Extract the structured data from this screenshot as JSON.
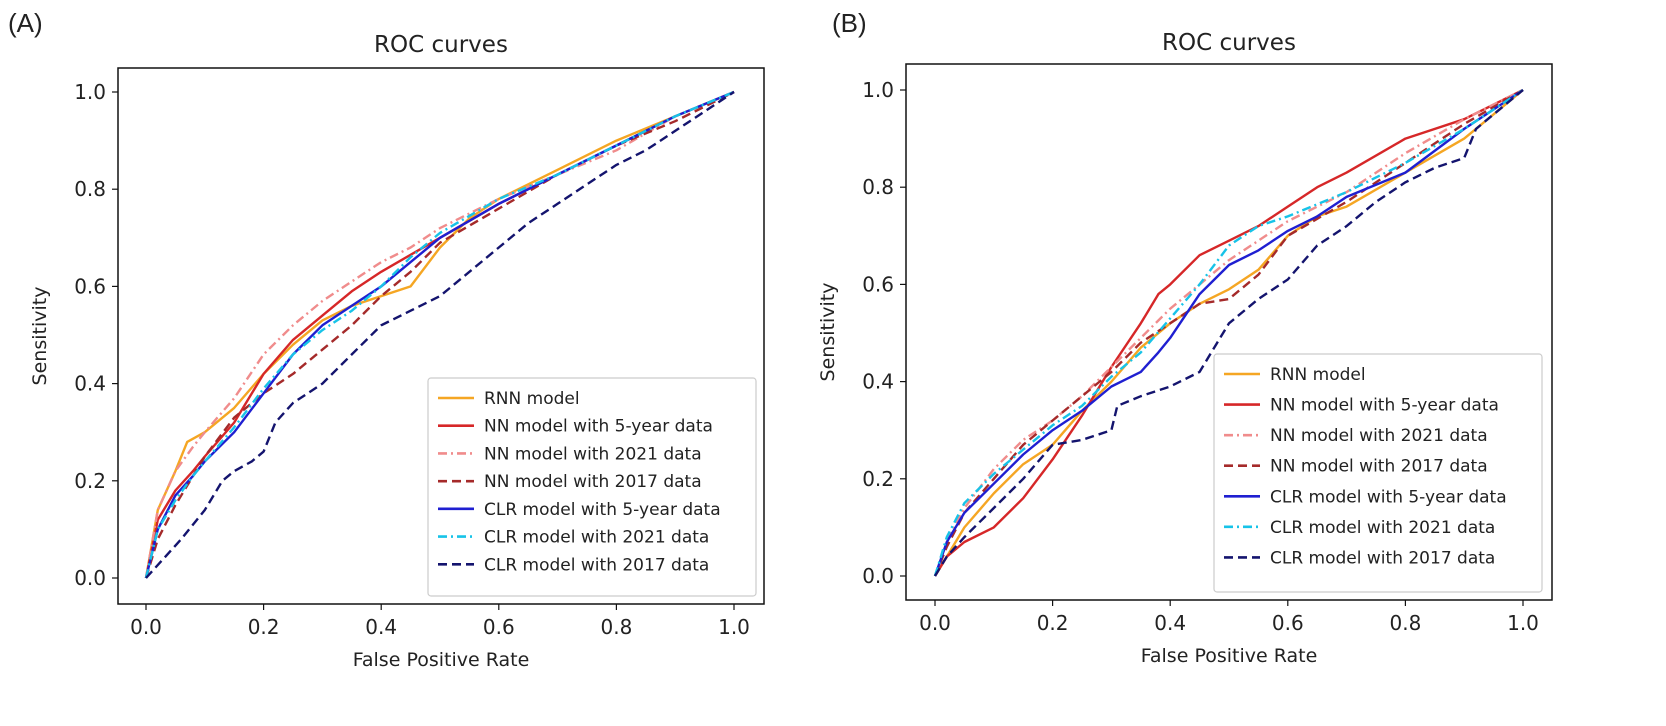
{
  "chart_data": [
    {
      "type": "line",
      "panel": "(A)",
      "title": "ROC curves",
      "xlabel": "False Positive Rate",
      "ylabel": "Sensitivity",
      "xlim": [
        0.0,
        1.0
      ],
      "ylim": [
        0.0,
        1.0
      ],
      "xticks": [
        "0.0",
        "0.2",
        "0.4",
        "0.6",
        "0.8",
        "1.0"
      ],
      "yticks": [
        "0.0",
        "0.2",
        "0.4",
        "0.6",
        "0.8",
        "1.0"
      ],
      "legend_position": "bottom-right",
      "series": [
        {
          "name": "RNN model",
          "color": "#f5a623",
          "dash": "solid",
          "x": [
            0,
            0.02,
            0.05,
            0.07,
            0.1,
            0.15,
            0.2,
            0.25,
            0.3,
            0.35,
            0.4,
            0.45,
            0.5,
            0.55,
            0.6,
            0.7,
            0.8,
            0.9,
            1.0
          ],
          "y": [
            0,
            0.14,
            0.22,
            0.28,
            0.3,
            0.35,
            0.42,
            0.48,
            0.53,
            0.56,
            0.58,
            0.6,
            0.68,
            0.74,
            0.78,
            0.84,
            0.9,
            0.95,
            1.0
          ]
        },
        {
          "name": "NN model with 5-year data",
          "color": "#d62728",
          "dash": "solid",
          "x": [
            0,
            0.02,
            0.05,
            0.08,
            0.1,
            0.15,
            0.2,
            0.25,
            0.3,
            0.35,
            0.4,
            0.5,
            0.6,
            0.7,
            0.8,
            0.9,
            1.0
          ],
          "y": [
            0,
            0.12,
            0.18,
            0.22,
            0.25,
            0.32,
            0.42,
            0.49,
            0.54,
            0.59,
            0.63,
            0.7,
            0.77,
            0.83,
            0.89,
            0.95,
            1.0
          ]
        },
        {
          "name": "NN model with 2021 data",
          "color": "#f08c8c",
          "dash": "dashdot",
          "x": [
            0,
            0.02,
            0.05,
            0.08,
            0.1,
            0.15,
            0.2,
            0.25,
            0.3,
            0.35,
            0.4,
            0.45,
            0.5,
            0.6,
            0.7,
            0.8,
            0.9,
            1.0
          ],
          "y": [
            0,
            0.14,
            0.22,
            0.27,
            0.3,
            0.37,
            0.46,
            0.52,
            0.57,
            0.61,
            0.65,
            0.68,
            0.72,
            0.78,
            0.83,
            0.88,
            0.95,
            1.0
          ]
        },
        {
          "name": "NN model with 2017 data",
          "color": "#a52a2a",
          "dash": "dashed",
          "x": [
            0,
            0.02,
            0.05,
            0.1,
            0.15,
            0.2,
            0.25,
            0.3,
            0.35,
            0.4,
            0.45,
            0.5,
            0.6,
            0.7,
            0.8,
            0.9,
            1.0
          ],
          "y": [
            0,
            0.08,
            0.15,
            0.25,
            0.33,
            0.38,
            0.42,
            0.47,
            0.52,
            0.58,
            0.63,
            0.69,
            0.76,
            0.83,
            0.89,
            0.94,
            1.0
          ]
        },
        {
          "name": "CLR model with 5-year data",
          "color": "#1f1fd1",
          "dash": "solid",
          "x": [
            0,
            0.02,
            0.05,
            0.08,
            0.1,
            0.15,
            0.2,
            0.25,
            0.3,
            0.35,
            0.4,
            0.45,
            0.5,
            0.6,
            0.7,
            0.8,
            0.9,
            1.0
          ],
          "y": [
            0,
            0.1,
            0.17,
            0.21,
            0.24,
            0.3,
            0.38,
            0.46,
            0.52,
            0.56,
            0.6,
            0.65,
            0.7,
            0.77,
            0.83,
            0.89,
            0.95,
            1.0
          ]
        },
        {
          "name": "CLR model with 2021 data",
          "color": "#17c3e8",
          "dash": "dashdot",
          "x": [
            0,
            0.02,
            0.05,
            0.08,
            0.1,
            0.15,
            0.2,
            0.25,
            0.3,
            0.35,
            0.4,
            0.45,
            0.5,
            0.6,
            0.7,
            0.8,
            0.9,
            1.0
          ],
          "y": [
            0,
            0.1,
            0.16,
            0.21,
            0.24,
            0.31,
            0.39,
            0.46,
            0.51,
            0.55,
            0.6,
            0.66,
            0.71,
            0.78,
            0.83,
            0.89,
            0.95,
            1.0
          ]
        },
        {
          "name": "CLR model with 2017 data",
          "color": "#14146e",
          "dash": "dashed",
          "x": [
            0,
            0.03,
            0.06,
            0.1,
            0.13,
            0.15,
            0.18,
            0.2,
            0.22,
            0.25,
            0.3,
            0.35,
            0.4,
            0.45,
            0.5,
            0.55,
            0.6,
            0.65,
            0.7,
            0.75,
            0.8,
            0.85,
            0.9,
            1.0
          ],
          "y": [
            0,
            0.04,
            0.08,
            0.14,
            0.2,
            0.22,
            0.24,
            0.26,
            0.32,
            0.36,
            0.4,
            0.46,
            0.52,
            0.55,
            0.58,
            0.63,
            0.68,
            0.73,
            0.77,
            0.81,
            0.85,
            0.88,
            0.92,
            1.0
          ]
        }
      ]
    },
    {
      "type": "line",
      "panel": "(B)",
      "title": "ROC curves",
      "xlabel": "False Positive Rate",
      "ylabel": "Sensitivity",
      "xlim": [
        0.0,
        1.0
      ],
      "ylim": [
        0.0,
        1.0
      ],
      "xticks": [
        "0.0",
        "0.2",
        "0.4",
        "0.6",
        "0.8",
        "1.0"
      ],
      "yticks": [
        "0.0",
        "0.2",
        "0.4",
        "0.6",
        "0.8",
        "1.0"
      ],
      "legend_position": "bottom-right",
      "series": [
        {
          "name": "RNN model",
          "color": "#f5a623",
          "dash": "solid",
          "x": [
            0,
            0.02,
            0.05,
            0.1,
            0.15,
            0.2,
            0.25,
            0.3,
            0.35,
            0.4,
            0.45,
            0.5,
            0.55,
            0.6,
            0.65,
            0.7,
            0.8,
            0.9,
            1.0
          ],
          "y": [
            0,
            0.04,
            0.1,
            0.17,
            0.23,
            0.27,
            0.34,
            0.4,
            0.47,
            0.52,
            0.56,
            0.59,
            0.63,
            0.7,
            0.74,
            0.76,
            0.83,
            0.9,
            1.0
          ]
        },
        {
          "name": "NN model with 5-year data",
          "color": "#d62728",
          "dash": "solid",
          "x": [
            0,
            0.02,
            0.05,
            0.1,
            0.15,
            0.2,
            0.25,
            0.3,
            0.35,
            0.38,
            0.4,
            0.45,
            0.5,
            0.55,
            0.6,
            0.65,
            0.7,
            0.8,
            0.9,
            1.0
          ],
          "y": [
            0,
            0.04,
            0.07,
            0.1,
            0.16,
            0.24,
            0.33,
            0.43,
            0.52,
            0.58,
            0.6,
            0.66,
            0.69,
            0.72,
            0.76,
            0.8,
            0.83,
            0.9,
            0.94,
            1.0
          ]
        },
        {
          "name": "NN model with 2021 data",
          "color": "#f08c8c",
          "dash": "dashdot",
          "x": [
            0,
            0.02,
            0.05,
            0.1,
            0.15,
            0.2,
            0.25,
            0.3,
            0.35,
            0.4,
            0.45,
            0.5,
            0.6,
            0.7,
            0.8,
            0.9,
            1.0
          ],
          "y": [
            0,
            0.07,
            0.14,
            0.22,
            0.28,
            0.32,
            0.37,
            0.43,
            0.49,
            0.55,
            0.6,
            0.65,
            0.73,
            0.79,
            0.87,
            0.94,
            1.0
          ]
        },
        {
          "name": "NN model with 2017 data",
          "color": "#a52a2a",
          "dash": "dashed",
          "x": [
            0,
            0.02,
            0.05,
            0.1,
            0.15,
            0.2,
            0.25,
            0.3,
            0.35,
            0.4,
            0.45,
            0.5,
            0.55,
            0.6,
            0.7,
            0.8,
            0.9,
            1.0
          ],
          "y": [
            0,
            0.06,
            0.13,
            0.2,
            0.27,
            0.32,
            0.37,
            0.42,
            0.48,
            0.52,
            0.56,
            0.57,
            0.62,
            0.7,
            0.77,
            0.85,
            0.93,
            1.0
          ]
        },
        {
          "name": "CLR model with 5-year data",
          "color": "#1f1fd1",
          "dash": "solid",
          "x": [
            0,
            0.02,
            0.05,
            0.1,
            0.15,
            0.2,
            0.25,
            0.3,
            0.35,
            0.38,
            0.4,
            0.45,
            0.5,
            0.55,
            0.6,
            0.65,
            0.7,
            0.8,
            0.9,
            1.0
          ],
          "y": [
            0,
            0.07,
            0.13,
            0.19,
            0.25,
            0.3,
            0.34,
            0.39,
            0.42,
            0.46,
            0.49,
            0.58,
            0.64,
            0.67,
            0.71,
            0.74,
            0.78,
            0.83,
            0.92,
            1.0
          ]
        },
        {
          "name": "CLR model with 2021 data",
          "color": "#17c3e8",
          "dash": "dashdot",
          "x": [
            0,
            0.02,
            0.05,
            0.1,
            0.15,
            0.2,
            0.25,
            0.3,
            0.35,
            0.4,
            0.45,
            0.5,
            0.55,
            0.6,
            0.7,
            0.8,
            0.9,
            1.0
          ],
          "y": [
            0,
            0.08,
            0.15,
            0.21,
            0.26,
            0.31,
            0.35,
            0.41,
            0.46,
            0.53,
            0.6,
            0.68,
            0.72,
            0.74,
            0.79,
            0.85,
            0.92,
            1.0
          ]
        },
        {
          "name": "CLR model with 2017 data",
          "color": "#14146e",
          "dash": "dashed",
          "x": [
            0,
            0.02,
            0.05,
            0.1,
            0.15,
            0.2,
            0.25,
            0.3,
            0.31,
            0.35,
            0.4,
            0.45,
            0.48,
            0.5,
            0.55,
            0.6,
            0.65,
            0.7,
            0.75,
            0.8,
            0.85,
            0.9,
            0.92,
            1.0
          ],
          "y": [
            0,
            0.04,
            0.08,
            0.14,
            0.2,
            0.27,
            0.28,
            0.3,
            0.35,
            0.37,
            0.39,
            0.42,
            0.48,
            0.52,
            0.57,
            0.61,
            0.68,
            0.72,
            0.77,
            0.81,
            0.84,
            0.86,
            0.92,
            1.0
          ]
        }
      ]
    }
  ]
}
